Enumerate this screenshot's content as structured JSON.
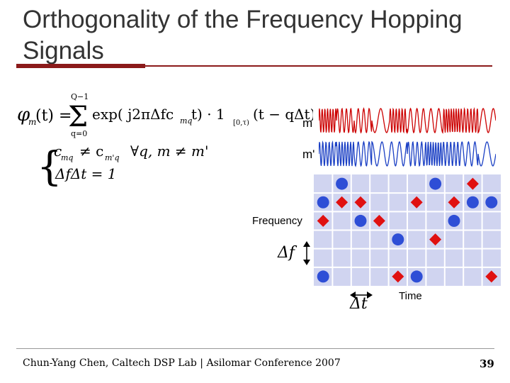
{
  "slide": {
    "title": "Orthogonality of the Frequency Hopping Signals",
    "footer": "Chun-Yang Chen, Caltech DSP Lab | Asilomar Conference 2007",
    "page_number": "39"
  },
  "formula": {
    "phi": "φ",
    "sub_m": "m",
    "arg_t": "(t) =",
    "sum_upper": "Q−1",
    "sum_lower": "q=0",
    "sigma": "Σ",
    "exp_part": "exp( j2πΔfc",
    "sub_mq": "mq",
    "t_part": "t) · 1",
    "indicator_sub": "[0,τ)",
    "shift_part": "(t − qΔt)",
    "cond1_a": "c",
    "cond1_sub1": "mq",
    "cond1_neq": "≠ c",
    "cond1_sub2": "m'q",
    "forall": "∀q, m ≠ m'",
    "cond2": "ΔfΔt = 1"
  },
  "signals": {
    "label_m": "m",
    "label_m_prime": "m'",
    "color_m": "#cc0000",
    "color_m_prime": "#1a3fc4"
  },
  "grid": {
    "ylabel": "Frequency",
    "xlabel": "Time",
    "delta_f": "Δf",
    "delta_t": "Δt",
    "cell_color": "#d0d4f0",
    "line_color": "#ffffff",
    "cols": 10,
    "rows": 6,
    "circle_color": "#2e4ed6",
    "diamond_color": "#e01010",
    "circles": [
      [
        1,
        0
      ],
      [
        6,
        0
      ],
      [
        0,
        1
      ],
      [
        8,
        1
      ],
      [
        9,
        1
      ],
      [
        2,
        2
      ],
      [
        7,
        2
      ],
      [
        4,
        3
      ],
      [
        0,
        5
      ],
      [
        5,
        5
      ]
    ],
    "diamonds": [
      [
        8,
        0
      ],
      [
        1,
        1
      ],
      [
        2,
        1
      ],
      [
        5,
        1
      ],
      [
        7,
        1
      ],
      [
        0,
        2
      ],
      [
        3,
        2
      ],
      [
        6,
        3
      ],
      [
        4,
        5
      ],
      [
        9,
        5
      ]
    ]
  }
}
